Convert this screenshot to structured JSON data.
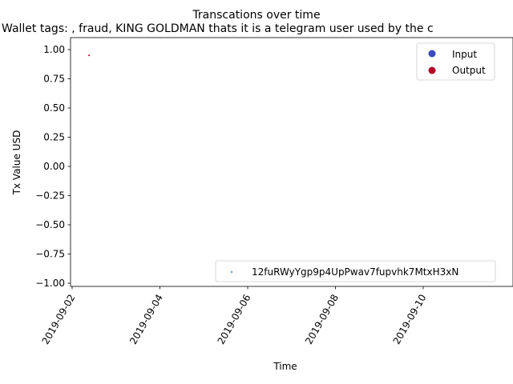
{
  "chart_data": {
    "type": "scatter",
    "title": "Transcations over time",
    "subtitle": "Wallet tags: , fraud, KING GOLDMAN thats it is a telegram user used by the c",
    "xlabel": "Time",
    "ylabel": "Tx Value USD",
    "x_axis_type": "date",
    "xlim": [
      "2019-09-02",
      "2019-09-11"
    ],
    "ylim": [
      -1.0,
      1.0
    ],
    "grid": false,
    "x_ticks": [
      "2019-09-02",
      "2019-09-04",
      "2019-09-06",
      "2019-09-08",
      "2019-09-10"
    ],
    "y_ticks": [
      "1.00",
      "0.75",
      "0.50",
      "0.25",
      "0.00",
      "−0.25",
      "−0.50",
      "−0.75",
      "−1.00"
    ],
    "legend_type": {
      "placement": "top-right",
      "entries": [
        {
          "label": "Input",
          "color": "#3b4cc0"
        },
        {
          "label": "Output",
          "color": "#b40426"
        }
      ]
    },
    "legend_wallet": {
      "placement": "bottom-right",
      "entries": [
        {
          "label": "12fuRWyYgp9p4UpPwav7fupvhk7MtxH3xN",
          "color": "#1f77b4"
        }
      ]
    },
    "series": [
      {
        "name": "12fuRWyYgp9p4UpPwav7fupvhk7MtxH3xN",
        "points": [
          {
            "x": "2019-09-02",
            "y": 0.95,
            "type": "Output"
          }
        ]
      }
    ]
  },
  "colors": {
    "input": "#3b4cc0",
    "output": "#b40426",
    "wallet": "#1f77b4"
  }
}
